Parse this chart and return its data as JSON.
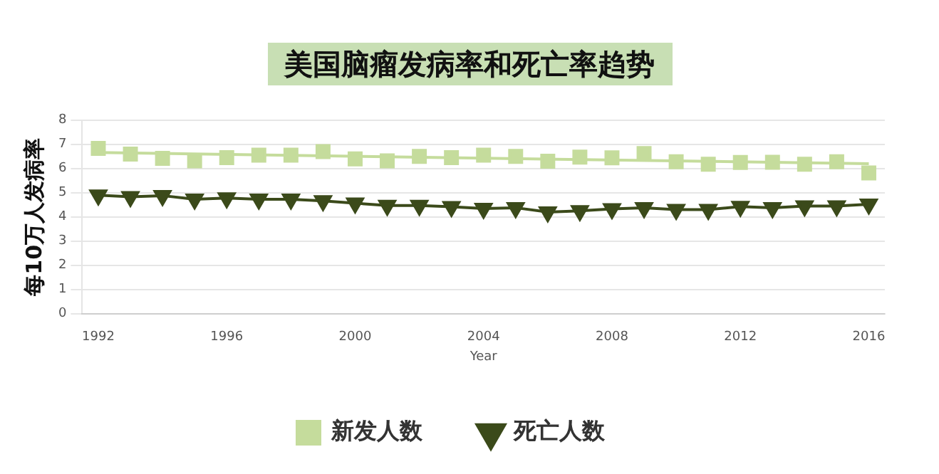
{
  "chart_data": {
    "type": "scatter",
    "title": "美国脑瘤发病率和死亡率趋势",
    "xlabel": "Year",
    "ylabel": "每10万人发病率",
    "xlim": [
      1991.5,
      2016.5
    ],
    "xticks": [
      1992,
      1996,
      2000,
      2004,
      2008,
      2012,
      2016
    ],
    "ylim": [
      0,
      8
    ],
    "yticks": [
      0,
      1,
      2,
      3,
      4,
      5,
      6,
      7,
      8
    ],
    "grid": "y",
    "legend": "bottom",
    "x": [
      1992,
      1993,
      1994,
      1995,
      1996,
      1997,
      1998,
      1999,
      2000,
      2001,
      2002,
      2003,
      2004,
      2005,
      2006,
      2007,
      2008,
      2009,
      2010,
      2011,
      2012,
      2013,
      2014,
      2015,
      2016
    ],
    "series": [
      {
        "name": "新发人数",
        "type": "scatter",
        "marker": "square",
        "color": "#c5dc9c",
        "values": [
          6.83,
          6.6,
          6.42,
          6.32,
          6.45,
          6.55,
          6.55,
          6.7,
          6.4,
          6.32,
          6.5,
          6.45,
          6.55,
          6.5,
          6.3,
          6.47,
          6.44,
          6.62,
          6.28,
          6.18,
          6.25,
          6.26,
          6.18,
          6.28,
          5.82
        ]
      },
      {
        "type": "line",
        "marker": "none",
        "color": "#c5dc9c",
        "x": [
          1992,
          2016
        ],
        "values": [
          6.66,
          6.2
        ]
      },
      {
        "name": "死亡人数",
        "type": "line",
        "marker": "triangle",
        "color": "#3b4a1a",
        "values": [
          4.9,
          4.83,
          4.88,
          4.73,
          4.78,
          4.73,
          4.73,
          4.66,
          4.57,
          4.47,
          4.47,
          4.42,
          4.35,
          4.38,
          4.2,
          4.25,
          4.33,
          4.38,
          4.3,
          4.3,
          4.43,
          4.38,
          4.45,
          4.45,
          4.52
        ]
      }
    ]
  }
}
